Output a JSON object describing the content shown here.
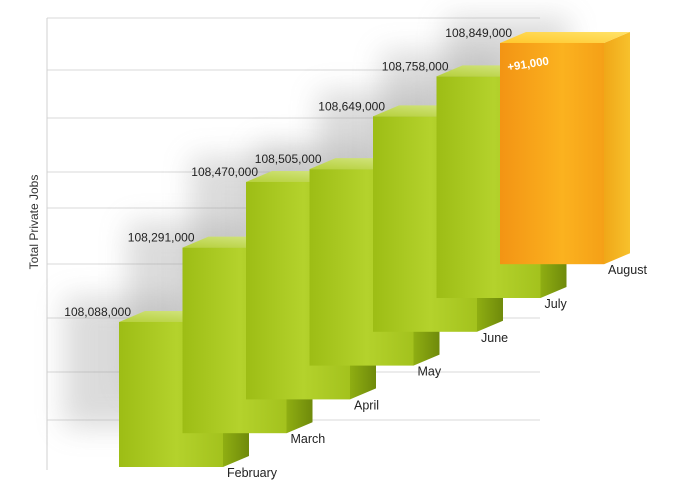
{
  "chart_data": {
    "type": "bar",
    "ylabel": "Total Private Jobs",
    "categories": [
      "February",
      "March",
      "April",
      "May",
      "June",
      "July",
      "August"
    ],
    "values": [
      108088000,
      108291000,
      108470000,
      108505000,
      108649000,
      108758000,
      108849000
    ],
    "value_labels": [
      "108,088,000",
      "108,291,000",
      "108,470,000",
      "108,505,000",
      "108,649,000",
      "108,758,000",
      "108,849,000"
    ],
    "annotation": "+91,000",
    "highlight_category": "August",
    "grid": true,
    "colors": {
      "normal_front": "#a9c81f",
      "normal_side": "#7e9a10",
      "normal_top": "#c7dc6a",
      "highlight_front": "#f7a215",
      "highlight_side": "#e67d0c",
      "highlight_top": "#ffd33a",
      "grid": "#cfcfcf"
    }
  }
}
